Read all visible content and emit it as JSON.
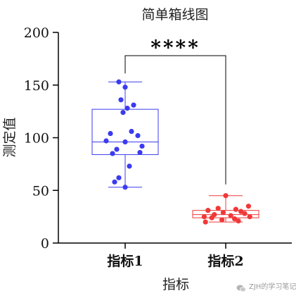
{
  "chart_data": {
    "type": "box",
    "title": "简单箱线图",
    "xlabel": "指标",
    "ylabel": "测定值",
    "ylim": [
      0,
      200
    ],
    "yticks": [
      0,
      50,
      100,
      150,
      200
    ],
    "categories": [
      "指标1",
      "指标2"
    ],
    "series": [
      {
        "category": "指标1",
        "color": "#3b3bf0",
        "whisker_low": 53,
        "q1": 84,
        "median": 96,
        "q3": 127,
        "whisker_high": 153,
        "points": [
          153,
          148,
          136,
          131,
          128,
          124,
          106,
          104,
          102,
          97,
          96,
          92,
          89,
          86,
          85,
          73,
          62,
          58,
          53
        ]
      },
      {
        "category": "指标2",
        "color": "#f03838",
        "whisker_low": 20,
        "q1": 24,
        "median": 27,
        "q3": 31,
        "whisker_high": 45,
        "points": [
          45,
          35,
          33,
          32,
          31,
          30,
          29,
          28,
          27,
          26,
          25,
          25,
          24,
          23,
          22,
          21,
          20
        ]
      }
    ],
    "significance": {
      "label": "****",
      "between": [
        "指标1",
        "指标2"
      ]
    },
    "grid": false,
    "legend": "none"
  },
  "watermark": {
    "text": "ZJH的学习笔记",
    "icon": "wechat-icon"
  }
}
